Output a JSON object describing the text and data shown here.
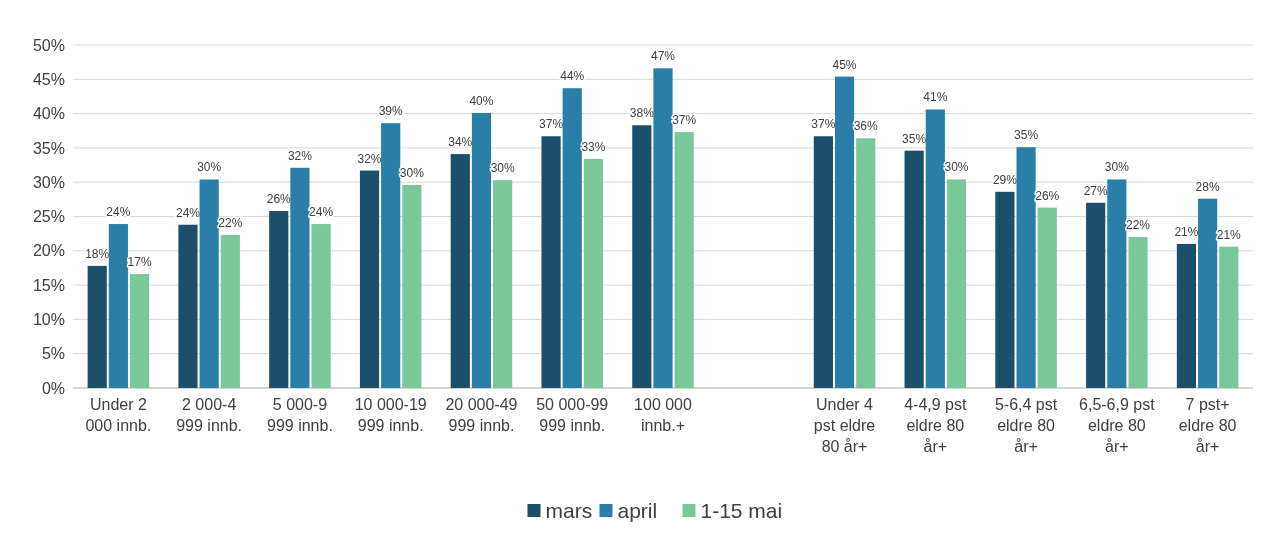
{
  "chart_data": {
    "type": "bar",
    "categories": [
      "Under 2\n000 innb.",
      "2 000-4\n999 innb.",
      "5 000-9\n999 innb.",
      "10 000-19\n999 innb.",
      "20 000-49\n999 innb.",
      "50 000-99\n999 innb.",
      "100 000\ninnb.+",
      null,
      "Under 4\npst eldre\n80 år+",
      "4-4,9 pst\neldre 80\når+",
      "5-6,4 pst\neldre 80\når+",
      "6,5-6,9 pst\neldre 80\når+",
      "7 pst+\neldre 80\når+"
    ],
    "series": [
      {
        "name": "mars",
        "color": "#1b4f6b",
        "values": [
          17.8,
          23.8,
          25.8,
          31.7,
          34.1,
          36.7,
          38.3,
          null,
          36.7,
          34.6,
          28.6,
          27.0,
          21.0
        ],
        "value_labels": [
          "18%",
          "24%",
          "26%",
          "32%",
          "34%",
          "37%",
          "38%",
          null,
          "37%",
          "35%",
          "29%",
          "27%",
          "21%"
        ]
      },
      {
        "name": "april",
        "color": "#2a7fa8",
        "values": [
          23.9,
          30.4,
          32.1,
          38.6,
          40.1,
          43.7,
          46.6,
          null,
          45.4,
          40.6,
          35.1,
          30.4,
          27.6
        ],
        "value_labels": [
          "24%",
          "30%",
          "32%",
          "39%",
          "40%",
          "44%",
          "47%",
          null,
          "45%",
          "41%",
          "35%",
          "30%",
          "28%"
        ]
      },
      {
        "name": "1-15 mai",
        "color": "#7ac79a",
        "values": [
          16.6,
          22.3,
          23.9,
          29.6,
          30.3,
          33.4,
          37.3,
          null,
          36.4,
          30.4,
          26.3,
          22.0,
          20.6
        ],
        "value_labels": [
          "17%",
          "22%",
          "24%",
          "30%",
          "30%",
          "33%",
          "37%",
          null,
          "36%",
          "30%",
          "26%",
          "22%",
          "21%"
        ]
      }
    ],
    "ylim": [
      0,
      50
    ],
    "yticks": [
      {
        "value": 0,
        "label": "0%"
      },
      {
        "value": 5,
        "label": "5%"
      },
      {
        "value": 10,
        "label": "10%"
      },
      {
        "value": 15,
        "label": "15%"
      },
      {
        "value": 20,
        "label": "20%"
      },
      {
        "value": 25,
        "label": "25%"
      },
      {
        "value": 30,
        "label": "30%"
      },
      {
        "value": 35,
        "label": "35%"
      },
      {
        "value": 40,
        "label": "40%"
      },
      {
        "value": 45,
        "label": "45%"
      },
      {
        "value": 50,
        "label": "50%"
      }
    ],
    "grid": "y",
    "legend": "bottom"
  }
}
